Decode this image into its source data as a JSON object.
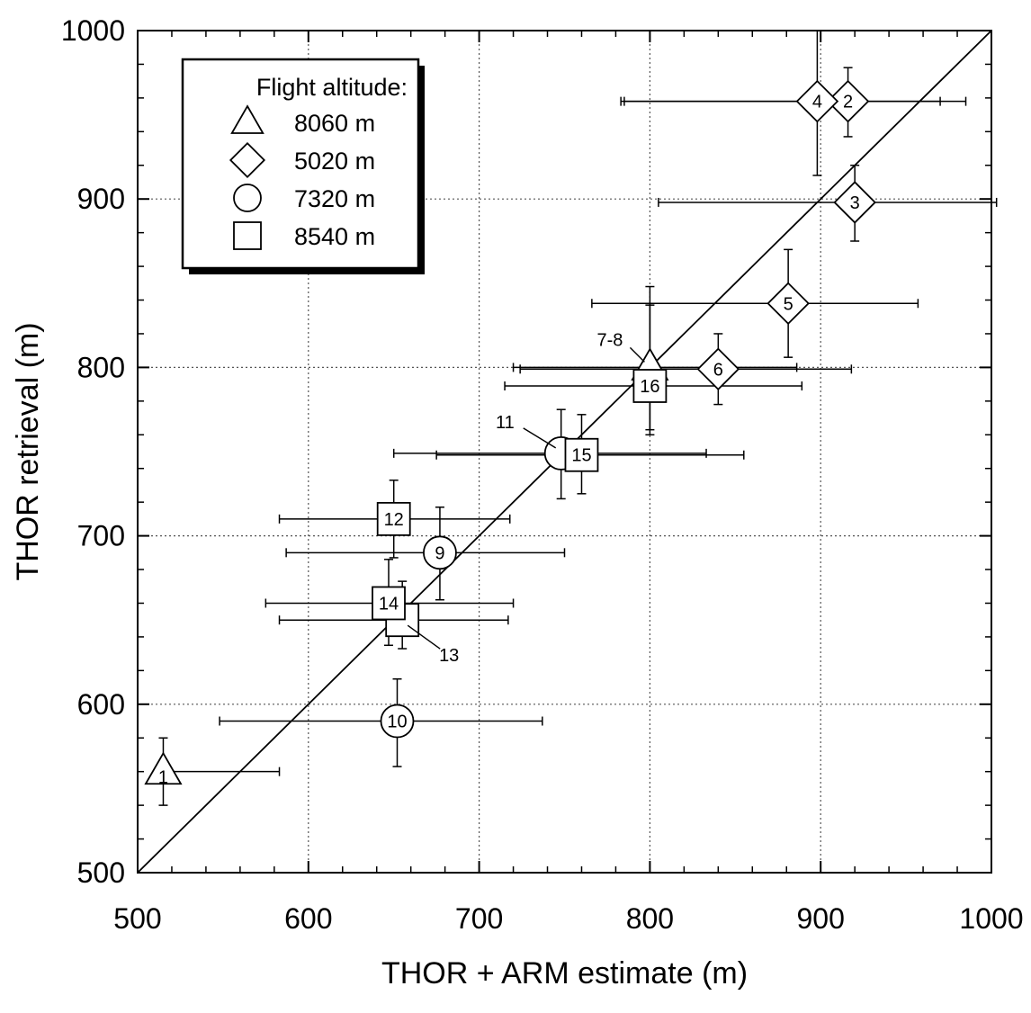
{
  "chart_data": {
    "type": "scatter",
    "xlabel": "THOR + ARM estimate (m)",
    "ylabel": "THOR retrieval (m)",
    "xlim": [
      500,
      1000
    ],
    "ylim": [
      500,
      1000
    ],
    "xticks": [
      "500",
      "600",
      "700",
      "800",
      "900",
      "1000"
    ],
    "yticks": [
      "500",
      "600",
      "700",
      "800",
      "900",
      "1000"
    ],
    "grid": true,
    "diagonal_line": "1:1",
    "legend": {
      "title": "Flight altitude:",
      "placement": "top-left",
      "entries": [
        {
          "marker": "triangle",
          "label": "8060 m"
        },
        {
          "marker": "diamond",
          "label": "5020 m"
        },
        {
          "marker": "circle",
          "label": "7320 m"
        },
        {
          "marker": "square",
          "label": "8540 m"
        }
      ]
    },
    "points": [
      {
        "id": "1",
        "marker": "triangle",
        "x": 515,
        "y": 560,
        "xerr": [
          515,
          583
        ],
        "yerr": [
          540,
          580
        ]
      },
      {
        "id": "2",
        "marker": "diamond",
        "x": 916,
        "y": 958,
        "xerr": [
          785,
          985
        ],
        "yerr": [
          937,
          978
        ]
      },
      {
        "id": "3",
        "marker": "diamond",
        "x": 920,
        "y": 898,
        "xerr": [
          805,
          1003
        ],
        "yerr": [
          875,
          920
        ]
      },
      {
        "id": "4",
        "marker": "diamond",
        "x": 898,
        "y": 958,
        "xerr": [
          783,
          970
        ],
        "yerr": [
          914,
          1000
        ]
      },
      {
        "id": "5",
        "marker": "diamond",
        "x": 881,
        "y": 838,
        "xerr": [
          766,
          957
        ],
        "yerr": [
          806,
          870
        ]
      },
      {
        "id": "6",
        "marker": "diamond",
        "x": 840,
        "y": 799,
        "xerr": [
          724,
          918
        ],
        "yerr": [
          778,
          820
        ]
      },
      {
        "id": "7-8",
        "marker": "triangle",
        "x": 800,
        "y": 800,
        "xerr": [
          720,
          886
        ],
        "yerr": [
          760,
          848
        ]
      },
      {
        "id": "9",
        "marker": "circle",
        "x": 677,
        "y": 690,
        "xerr": [
          587,
          750
        ],
        "yerr": [
          662,
          717
        ]
      },
      {
        "id": "10",
        "marker": "circle",
        "x": 652,
        "y": 590,
        "xerr": [
          548,
          737
        ],
        "yerr": [
          563,
          615
        ]
      },
      {
        "id": "11",
        "marker": "circle",
        "x": 748,
        "y": 749,
        "xerr": [
          650,
          833
        ],
        "yerr": [
          722,
          775
        ]
      },
      {
        "id": "12",
        "marker": "square",
        "x": 650,
        "y": 710,
        "xerr": [
          583,
          718
        ],
        "yerr": [
          687,
          733
        ]
      },
      {
        "id": "13",
        "marker": "square",
        "x": 655,
        "y": 650,
        "xerr": [
          583,
          717
        ],
        "yerr": [
          633,
          673
        ]
      },
      {
        "id": "14",
        "marker": "square",
        "x": 647,
        "y": 660,
        "xerr": [
          575,
          720
        ],
        "yerr": [
          635,
          686
        ]
      },
      {
        "id": "15",
        "marker": "square",
        "x": 760,
        "y": 748,
        "xerr": [
          675,
          855
        ],
        "yerr": [
          725,
          772
        ]
      },
      {
        "id": "16",
        "marker": "square",
        "x": 800,
        "y": 789,
        "xerr": [
          715,
          889
        ],
        "yerr": [
          763,
          837
        ]
      }
    ],
    "annotations": [
      {
        "text": "11",
        "for": "11"
      },
      {
        "text": "13",
        "for": "13"
      },
      {
        "text": "7-8",
        "for": "7-8"
      }
    ]
  }
}
